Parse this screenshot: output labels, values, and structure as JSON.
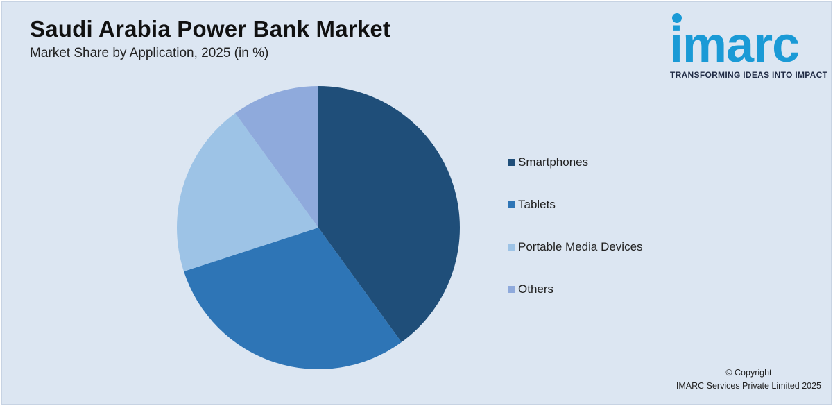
{
  "header": {
    "title": "Saudi Arabia Power Bank Market",
    "subtitle": "Market Share by Application, 2025 (in %)"
  },
  "logo": {
    "word": "imarc",
    "tagline": "TRANSFORMING IDEAS INTO IMPACT",
    "color": "#1a9ad6"
  },
  "chart_data": {
    "type": "pie",
    "categories": [
      "Smartphones",
      "Tablets",
      "Portable Media Devices",
      "Others"
    ],
    "values": [
      40,
      30,
      20,
      10
    ],
    "colors": [
      "#1f4e79",
      "#2e75b6",
      "#9dc3e6",
      "#8faadc"
    ],
    "legend_position": "right",
    "start_angle_deg": 0,
    "direction": "clockwise"
  },
  "footer": {
    "copyright_line1": "© Copyright",
    "copyright_line2": "IMARC Services Private Limited 2025"
  }
}
